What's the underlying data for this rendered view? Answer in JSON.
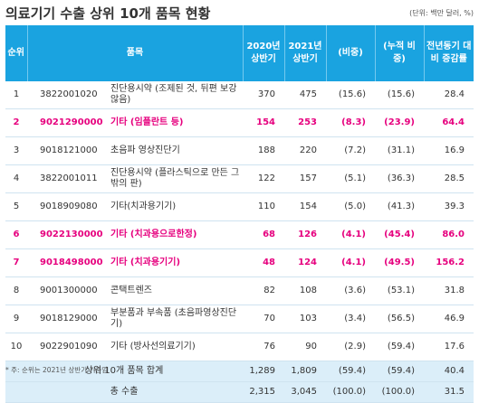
{
  "title": "의료기기 수출 상위 10개 품목 현황",
  "unit_note": "(단위: 백만 달러, %)",
  "headers": {
    "rank": "순위",
    "item": "품목",
    "h2020": "2020년 상반기",
    "h2021": "2021년 상반기",
    "share": "(비중)",
    "cum_share": "(누적 비중)",
    "growth": "전년동기 대비 증감률"
  },
  "rows": [
    {
      "rank": "1",
      "code": "3822001020",
      "name": "진단용시약 (조제된 것, 뒤편 보강 않음)",
      "v2020": "370",
      "v2021": "475",
      "share": "(15.6)",
      "cum": "(15.6)",
      "growth": "28.4",
      "hl": false
    },
    {
      "rank": "2",
      "code": "9021290000",
      "name": "기타 (임플란트 등)",
      "v2020": "154",
      "v2021": "253",
      "share": "(8.3)",
      "cum": "(23.9)",
      "growth": "64.4",
      "hl": true
    },
    {
      "rank": "3",
      "code": "9018121000",
      "name": "초음파 영상진단기",
      "v2020": "188",
      "v2021": "220",
      "share": "(7.2)",
      "cum": "(31.1)",
      "growth": "16.9",
      "hl": false
    },
    {
      "rank": "4",
      "code": "3822001011",
      "name": "진단용시약 (플라스틱으로 만든 그밖의 판)",
      "v2020": "122",
      "v2021": "157",
      "share": "(5.1)",
      "cum": "(36.3)",
      "growth": "28.5",
      "hl": false
    },
    {
      "rank": "5",
      "code": "9018909080",
      "name": "기타(치과용기기)",
      "v2020": "110",
      "v2021": "154",
      "share": "(5.0)",
      "cum": "(41.3)",
      "growth": "39.3",
      "hl": false
    },
    {
      "rank": "6",
      "code": "9022130000",
      "name": "기타 (치과용으로한정)",
      "v2020": "68",
      "v2021": "126",
      "share": "(4.1)",
      "cum": "(45.4)",
      "growth": "86.0",
      "hl": true
    },
    {
      "rank": "7",
      "code": "9018498000",
      "name": "기타 (치과용기기)",
      "v2020": "48",
      "v2021": "124",
      "share": "(4.1)",
      "cum": "(49.5)",
      "growth": "156.2",
      "hl": true
    },
    {
      "rank": "8",
      "code": "9001300000",
      "name": "콘택트렌즈",
      "v2020": "82",
      "v2021": "108",
      "share": "(3.6)",
      "cum": "(53.1)",
      "growth": "31.8",
      "hl": false
    },
    {
      "rank": "9",
      "code": "9018129000",
      "name": "부분품과 부속품 (초음파영상진단기)",
      "v2020": "70",
      "v2021": "103",
      "share": "(3.4)",
      "cum": "(56.5)",
      "growth": "46.9",
      "hl": false
    },
    {
      "rank": "10",
      "code": "9022901090",
      "name": "기타 (방사선의료기기)",
      "v2020": "76",
      "v2021": "90",
      "share": "(2.9)",
      "cum": "(59.4)",
      "growth": "17.6",
      "hl": false
    }
  ],
  "subtotal": {
    "label": "상위 10개 품목 합계",
    "v2020": "1,289",
    "v2021": "1,809",
    "share": "(59.4)",
    "cum": "(59.4)",
    "growth": "40.4"
  },
  "total": {
    "label": "총 수출",
    "v2020": "2,315",
    "v2021": "3,045",
    "share": "(100.0)",
    "cum": "(100.0)",
    "growth": "31.5"
  },
  "footnote": "* 주: 순위는 2021년 상반기 기준임",
  "colors": {
    "header_bg": "#1aa3e0",
    "highlight": "#e6007e",
    "total_bg": "#dbeef9"
  }
}
